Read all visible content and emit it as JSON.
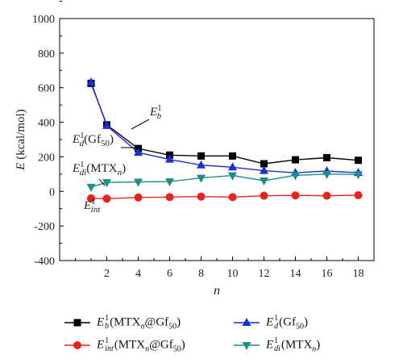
{
  "chart_data": {
    "type": "line",
    "xlabel": "n",
    "ylabel": "E (kcal/mol)",
    "x_ticks": [
      2,
      4,
      6,
      8,
      10,
      12,
      14,
      16,
      18
    ],
    "y_ticks": [
      -400,
      -200,
      0,
      200,
      400,
      600,
      800,
      1000
    ],
    "xlim": [
      -1,
      19
    ],
    "ylim": [
      -400,
      1000
    ],
    "grid": false,
    "legend_position": "bottom",
    "series": [
      {
        "name": "E_b^1(MTX_n@Gf_50)",
        "color": "#000000",
        "marker": "square",
        "x": [
          1,
          2,
          4,
          6,
          8,
          10,
          12,
          14,
          16,
          18
        ],
        "values": [
          625,
          385,
          248,
          210,
          205,
          205,
          160,
          183,
          195,
          180
        ]
      },
      {
        "name": "E_int^1(MTX_n@Gf_50)",
        "color": "#e8231e",
        "marker": "circle",
        "x": [
          1,
          2,
          4,
          6,
          8,
          10,
          12,
          14,
          16,
          18
        ],
        "values": [
          -40,
          -42,
          -35,
          -33,
          -30,
          -33,
          -25,
          -23,
          -25,
          -22
        ]
      },
      {
        "name": "E_d^1(Gf_50)",
        "color": "#1f2dd6",
        "marker": "triangle-up",
        "x": [
          1,
          2,
          4,
          6,
          8,
          10,
          12,
          14,
          16,
          18
        ],
        "values": [
          632,
          380,
          225,
          185,
          152,
          140,
          120,
          108,
          118,
          108
        ]
      },
      {
        "name": "E_di^1(MTX_n)",
        "color": "#1f8c8c",
        "marker": "triangle-down",
        "x": [
          1,
          2,
          4,
          6,
          8,
          10,
          12,
          14,
          16,
          18
        ],
        "values": [
          25,
          52,
          55,
          57,
          78,
          92,
          62,
          93,
          100,
          98
        ]
      }
    ],
    "annotations": [
      {
        "main": "E",
        "sup": "1",
        "sub": "b",
        "tail": ""
      },
      {
        "main": "E",
        "sup": "1",
        "sub": "d",
        "tail": "(Gf",
        "tail_sub": "50",
        "tail_end": ")"
      },
      {
        "main": "E",
        "sup": "1",
        "sub": "di",
        "tail": "(MTX",
        "tail_sub": "n",
        "tail_end": ")"
      },
      {
        "main": "E",
        "sup": "1",
        "sub": "int",
        "tail": ""
      }
    ]
  },
  "legend": [
    {
      "main": "E",
      "sup": "1",
      "sub": "b",
      "tail": "(MTX",
      "tail_sub": "n",
      "tail_end": "@Gf",
      "tail_sub2": "50",
      "tail_end2": ")"
    },
    {
      "main": "E",
      "sup": "1",
      "sub": "d",
      "tail": "(Gf",
      "tail_sub": "50",
      "tail_end": ")",
      "tail_sub2": "",
      "tail_end2": ""
    },
    {
      "main": "E",
      "sup": "1",
      "sub": "int",
      "tail": "(MTX",
      "tail_sub": "n",
      "tail_end": "@Gf",
      "tail_sub2": "50",
      "tail_end2": ")"
    },
    {
      "main": "E",
      "sup": "1",
      "sub": "di",
      "tail": "(MTX",
      "tail_sub": "n",
      "tail_end": ")",
      "tail_sub2": "",
      "tail_end2": ""
    }
  ]
}
